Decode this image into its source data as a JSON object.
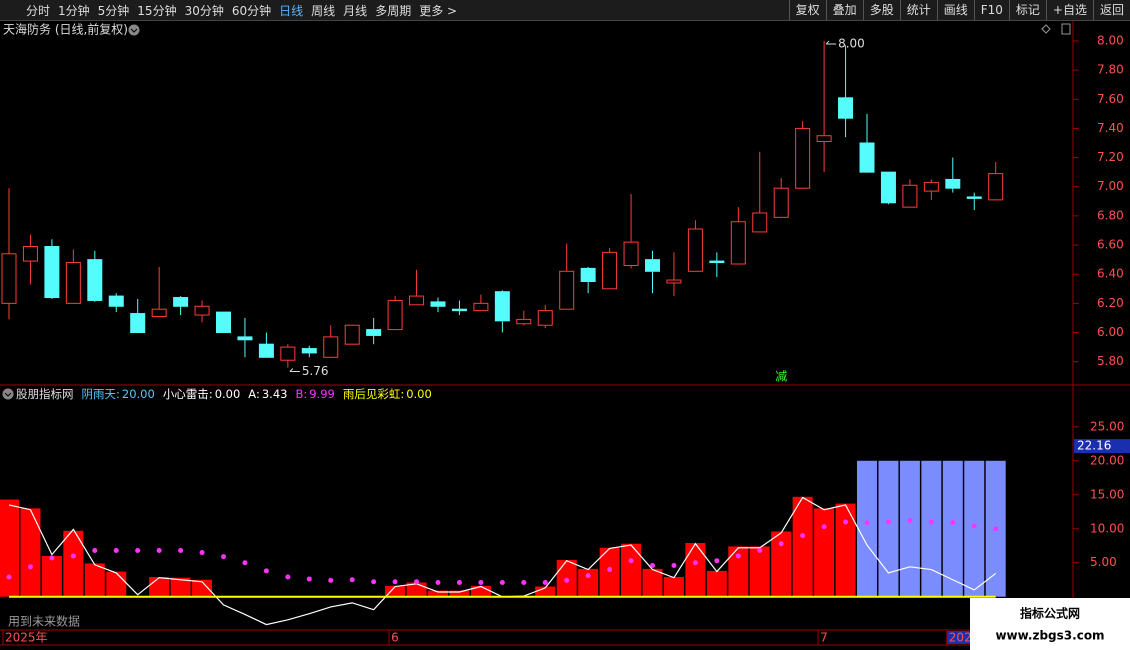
{
  "toolbar": {
    "periods": [
      "分时",
      "1分钟",
      "5分钟",
      "15分钟",
      "30分钟",
      "60分钟",
      "日线",
      "周线",
      "月线",
      "多周期",
      "更多 >"
    ],
    "active": "日线",
    "tools": [
      "复权",
      "叠加",
      "多股",
      "统计",
      "画线",
      "F10",
      "标记",
      "+自选",
      "返回"
    ]
  },
  "chart_data": [
    {
      "type": "candlestick",
      "title": "天海防务 (日线,前复权)",
      "up_color": "#ff3c3c",
      "down_color": "#54fcfc",
      "open": [
        6.2,
        6.49,
        6.59,
        6.2,
        6.5,
        6.25,
        6.13,
        6.11,
        6.24,
        6.12,
        6.14,
        5.97,
        5.92,
        5.81,
        5.89,
        5.83,
        5.92,
        6.02,
        6.02,
        6.19,
        6.21,
        6.16,
        6.15,
        6.28,
        6.06,
        6.05,
        6.16,
        6.44,
        6.3,
        6.46,
        6.5,
        6.34,
        6.42,
        6.49,
        6.47,
        6.69,
        6.79,
        6.99,
        7.31,
        7.61,
        7.3,
        7.1,
        6.86,
        6.97,
        7.05,
        6.93,
        6.91
      ],
      "high": [
        6.99,
        6.67,
        6.64,
        6.57,
        6.56,
        6.27,
        6.23,
        6.45,
        6.25,
        6.22,
        6.14,
        6.1,
        6.0,
        5.92,
        5.91,
        6.05,
        6.05,
        6.1,
        6.25,
        6.43,
        6.24,
        6.22,
        6.26,
        6.29,
        6.15,
        6.19,
        6.61,
        6.45,
        6.58,
        6.95,
        6.56,
        6.55,
        6.77,
        6.55,
        6.86,
        7.24,
        7.06,
        7.45,
        8.0,
        7.97,
        7.5,
        7.1,
        7.05,
        7.05,
        7.2,
        6.96,
        7.17
      ],
      "low": [
        6.09,
        6.33,
        6.23,
        6.2,
        6.21,
        6.14,
        6.0,
        6.11,
        6.12,
        6.07,
        6.0,
        5.83,
        5.83,
        5.76,
        5.83,
        5.83,
        5.92,
        5.92,
        6.02,
        6.19,
        6.14,
        6.12,
        6.15,
        6.0,
        6.05,
        6.03,
        6.16,
        6.27,
        6.3,
        6.44,
        6.27,
        6.25,
        6.42,
        6.38,
        6.47,
        6.69,
        6.79,
        6.99,
        7.1,
        7.34,
        7.1,
        6.88,
        6.86,
        6.91,
        6.96,
        6.84,
        6.91
      ],
      "close": [
        6.54,
        6.59,
        6.24,
        6.48,
        6.22,
        6.18,
        6.0,
        6.16,
        6.18,
        6.18,
        6.0,
        5.95,
        5.83,
        5.9,
        5.86,
        5.97,
        6.05,
        5.98,
        6.22,
        6.25,
        6.18,
        6.15,
        6.2,
        6.08,
        6.09,
        6.15,
        6.42,
        6.35,
        6.55,
        6.62,
        6.42,
        6.36,
        6.71,
        6.48,
        6.76,
        6.82,
        6.99,
        7.4,
        7.35,
        7.47,
        7.1,
        6.89,
        7.01,
        7.03,
        6.99,
        6.92,
        7.09
      ],
      "ylim": [
        5.64,
        8.13
      ],
      "yticks": [
        {
          "value": 5.8,
          "label": "5.80"
        },
        {
          "value": 6.0,
          "label": "6.00"
        },
        {
          "value": 6.2,
          "label": "6.20"
        },
        {
          "value": 6.4,
          "label": "6.40"
        },
        {
          "value": 6.6,
          "label": "6.60"
        },
        {
          "value": 6.8,
          "label": "6.80"
        },
        {
          "value": 7.0,
          "label": "7.00"
        },
        {
          "value": 7.2,
          "label": "7.20"
        },
        {
          "value": 7.4,
          "label": "7.40"
        },
        {
          "value": 7.6,
          "label": "7.60"
        },
        {
          "value": 7.8,
          "label": "7.80"
        },
        {
          "value": 8.0,
          "label": "8.00"
        }
      ],
      "annotations": [
        {
          "index": 38,
          "value": 8.0,
          "label": "8.00",
          "kind": "high"
        },
        {
          "index": 13,
          "value": 5.76,
          "label": "5.76",
          "kind": "low"
        }
      ],
      "signals": [
        {
          "index": 36,
          "label": "减",
          "color": "#33ff33"
        }
      ]
    },
    {
      "type": "indicator",
      "title": "股朋指标网",
      "ylim": [
        -4.6,
        28.5
      ],
      "yticks": [
        {
          "value": 5,
          "label": "5.00"
        },
        {
          "value": 10,
          "label": "10.00"
        },
        {
          "value": 15,
          "label": "15.00"
        },
        {
          "value": 20,
          "label": "20.00"
        },
        {
          "value": 25,
          "label": "25.00"
        }
      ],
      "cursor_label": {
        "value": 22.16,
        "label": "22.16"
      },
      "series": [
        {
          "name": "阴雨天",
          "readout": "20.00",
          "kind": "bar",
          "color": "#7b8cff",
          "text_color": "#5cc8ff",
          "values": [
            null,
            null,
            null,
            null,
            null,
            null,
            null,
            null,
            null,
            null,
            null,
            null,
            null,
            null,
            null,
            null,
            null,
            null,
            null,
            null,
            null,
            null,
            null,
            null,
            null,
            null,
            null,
            null,
            null,
            null,
            null,
            null,
            null,
            null,
            null,
            null,
            null,
            null,
            null,
            null,
            20,
            20,
            20,
            20,
            20,
            20,
            20
          ]
        },
        {
          "name": "小心雷击",
          "readout": "0.00",
          "kind": "bar",
          "color": "#ff0000",
          "text_color": "#ffffff",
          "values": [
            14.3,
            13.0,
            6.0,
            9.7,
            4.9,
            3.7,
            0,
            2.9,
            2.8,
            2.5,
            0,
            0,
            0,
            0,
            0,
            0,
            0,
            0,
            1.6,
            2.1,
            0.9,
            0.9,
            1.6,
            0,
            0,
            1.5,
            5.4,
            4.1,
            7.2,
            7.8,
            4.1,
            2.9,
            7.9,
            3.8,
            7.4,
            7.4,
            9.6,
            14.7,
            13.0,
            13.7,
            0,
            0,
            0,
            0,
            0,
            0,
            0
          ]
        },
        {
          "name": "A",
          "readout": "3.43",
          "kind": "line",
          "color": "#ffffff",
          "text_color": "#ffffff",
          "values": [
            13.5,
            12.8,
            6.2,
            9.9,
            4.7,
            3.5,
            0.3,
            2.8,
            2.5,
            2.2,
            -1.2,
            -2.6,
            -4.1,
            -3.4,
            -2.5,
            -1.5,
            -0.9,
            -1.9,
            1.5,
            1.9,
            0.7,
            0.7,
            1.5,
            0,
            0.1,
            1.3,
            5.3,
            4.0,
            7.1,
            7.6,
            4.0,
            2.8,
            7.8,
            3.7,
            7.2,
            7.2,
            9.4,
            14.6,
            12.8,
            13.5,
            7.6,
            3.5,
            4.4,
            4.0,
            2.5,
            1.0,
            3.43
          ]
        },
        {
          "name": "B",
          "readout": "9.99",
          "kind": "dots",
          "color": "#ff33ff",
          "text_color": "#ff33ff",
          "values": [
            2.9,
            4.4,
            5.7,
            6.0,
            6.8,
            6.8,
            6.8,
            6.8,
            6.8,
            6.5,
            5.9,
            5.0,
            3.8,
            2.9,
            2.6,
            2.4,
            2.5,
            2.2,
            2.2,
            2.2,
            2.1,
            2.1,
            2.1,
            2.1,
            2.1,
            2.1,
            2.4,
            3.1,
            4.0,
            5.3,
            4.6,
            4.6,
            5.0,
            5.3,
            6.0,
            6.8,
            7.8,
            9.0,
            10.3,
            11.0,
            10.9,
            11.0,
            11.2,
            11.0,
            10.9,
            10.4,
            9.99
          ]
        },
        {
          "name": "雨后见彩虹",
          "readout": "0.00",
          "kind": "line",
          "color": "#ffff00",
          "text_color": "#ffff00",
          "values": [
            0,
            0,
            0,
            0,
            0,
            0,
            0,
            0,
            0,
            0,
            0,
            0,
            0,
            0,
            0,
            0,
            0,
            0,
            0,
            0,
            0,
            0,
            0,
            0,
            0,
            0,
            0,
            0,
            0,
            0,
            0,
            0,
            0,
            0,
            0,
            0,
            0,
            0,
            0,
            0,
            0,
            0,
            0,
            0,
            0,
            0,
            0
          ]
        }
      ],
      "x_labels": [
        {
          "index": 0,
          "label": "2025年"
        },
        {
          "index": 18,
          "label": "6"
        },
        {
          "index": 38,
          "label": "7"
        },
        {
          "index": 44,
          "label": "202"
        }
      ]
    }
  ],
  "overlay": {
    "note": "用到未来数据",
    "watermark": "指标公式网",
    "watermark_url": "www.zbgs3.com"
  }
}
